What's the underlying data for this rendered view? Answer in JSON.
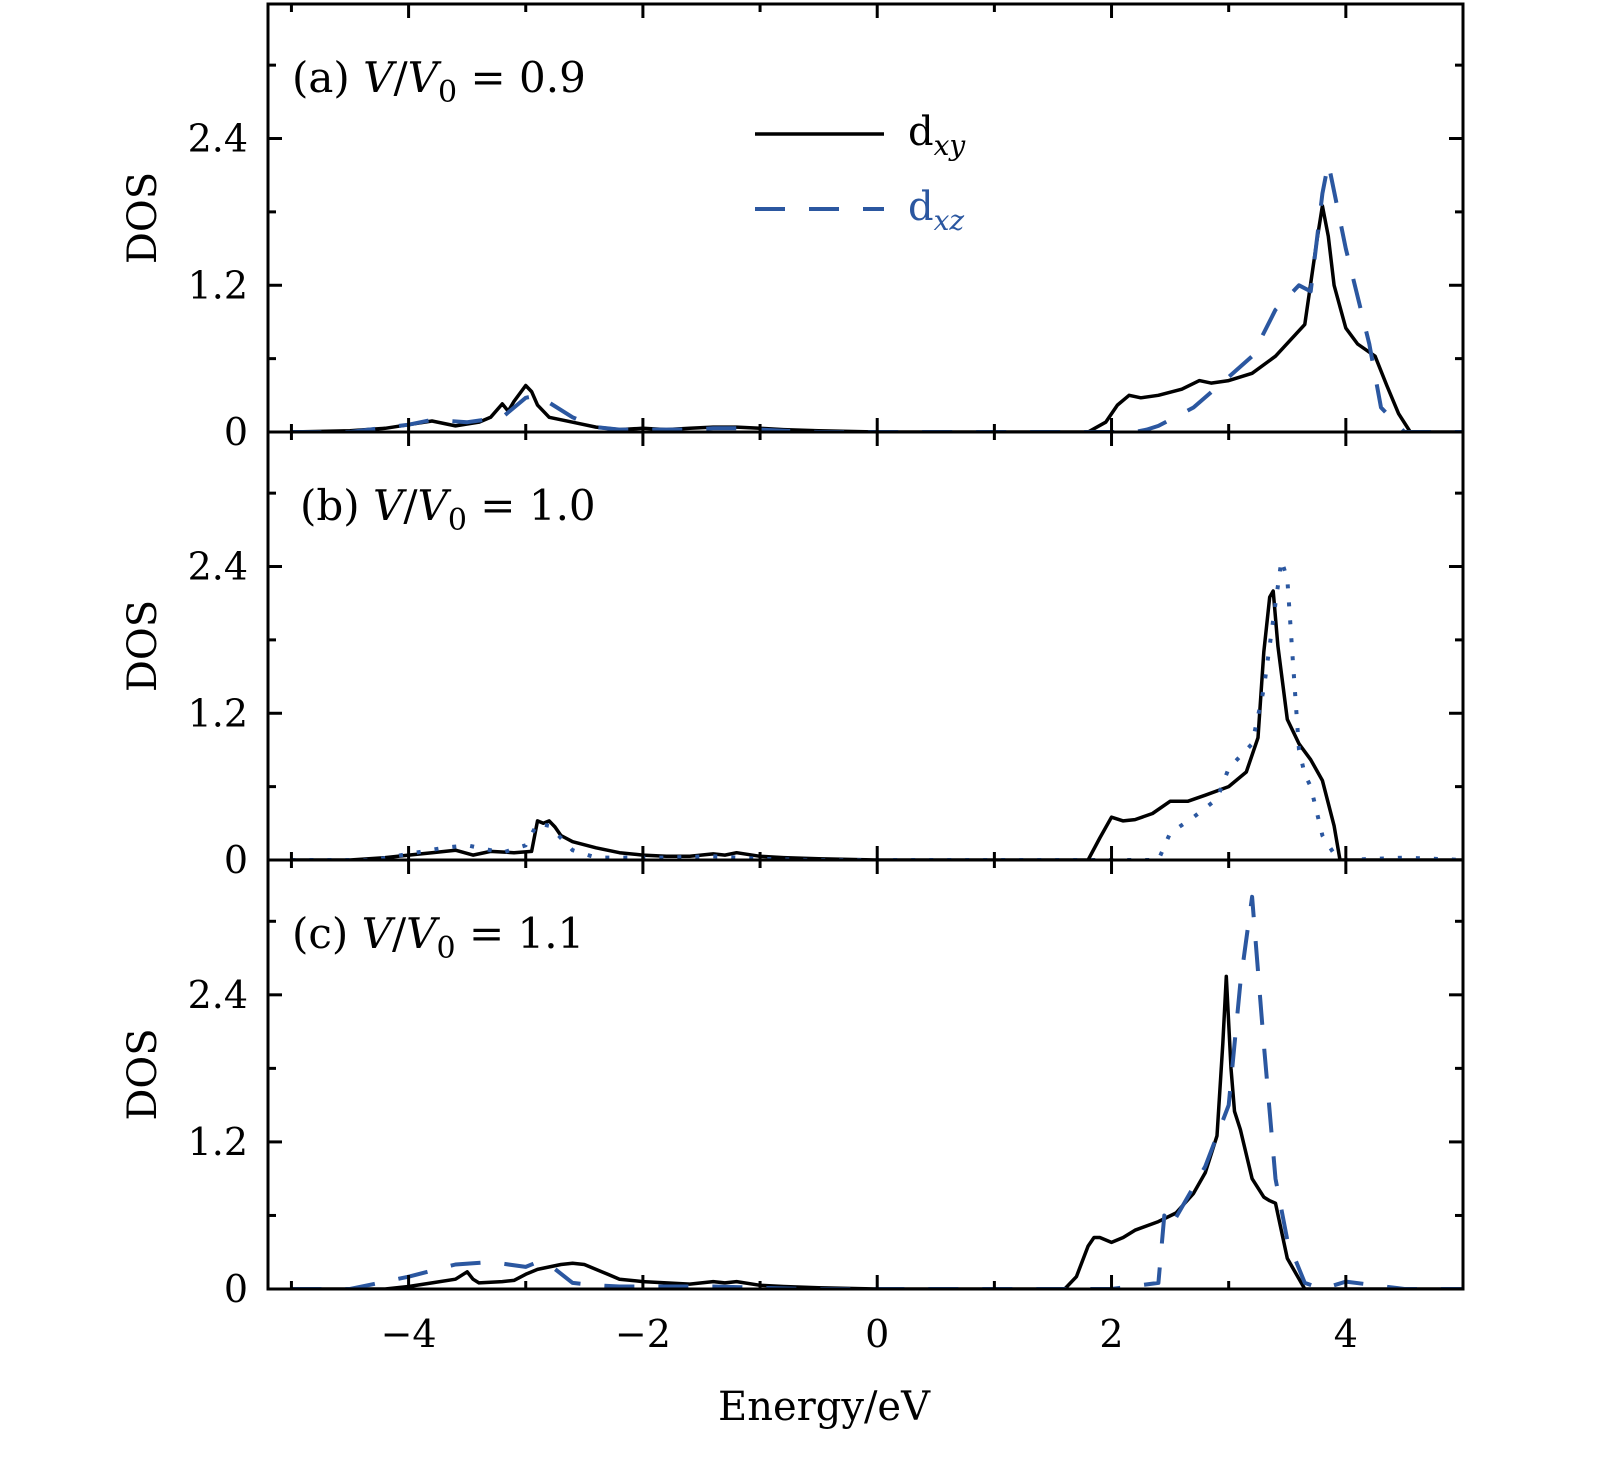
{
  "colors": {
    "dxy": "#000000",
    "dxz": "#2b57a0"
  },
  "chart_data": {
    "type": "line",
    "xlabel": "Energy/eV",
    "ylabel": "DOS",
    "xlim": [
      -5.2,
      5.0
    ],
    "ylim": [
      0,
      3.5
    ],
    "xticks": [
      -4,
      -2,
      0,
      2,
      4
    ],
    "xtick_labels": [
      "−4",
      "−2",
      "0",
      "2",
      "4"
    ],
    "yticks": [
      0,
      1.2,
      2.4
    ],
    "ytick_labels": [
      "0",
      "1.2",
      "2.4"
    ],
    "legend": {
      "placement": "upper-center",
      "entries": [
        "d_xy",
        "d_xz"
      ]
    },
    "panels": [
      {
        "label": "(a)",
        "ratio": "0.9",
        "series": [
          {
            "name": "d_xy",
            "style": "solid",
            "x": [
              -5.0,
              -4.5,
              -4.2,
              -4.0,
              -3.8,
              -3.6,
              -3.4,
              -3.3,
              -3.2,
              -3.15,
              -3.1,
              -3.0,
              -2.95,
              -2.9,
              -2.8,
              -2.6,
              -2.4,
              -2.2,
              -2.0,
              -1.8,
              -1.6,
              -1.4,
              -1.2,
              -1.0,
              -0.8,
              -0.5,
              0.0,
              1.0,
              1.8,
              1.95,
              2.05,
              2.15,
              2.25,
              2.4,
              2.6,
              2.75,
              2.85,
              3.0,
              3.2,
              3.4,
              3.65,
              3.75,
              3.8,
              3.85,
              3.9,
              4.0,
              4.1,
              4.25,
              4.35,
              4.45,
              4.55,
              5.0
            ],
            "y": [
              0,
              0.01,
              0.03,
              0.06,
              0.09,
              0.05,
              0.08,
              0.12,
              0.23,
              0.17,
              0.25,
              0.38,
              0.33,
              0.22,
              0.12,
              0.08,
              0.04,
              0.02,
              0.03,
              0.02,
              0.03,
              0.04,
              0.04,
              0.03,
              0.02,
              0.01,
              0,
              0,
              0,
              0.08,
              0.22,
              0.3,
              0.28,
              0.3,
              0.35,
              0.42,
              0.4,
              0.42,
              0.48,
              0.62,
              0.88,
              1.55,
              1.85,
              1.6,
              1.2,
              0.85,
              0.72,
              0.62,
              0.38,
              0.15,
              0,
              0
            ]
          },
          {
            "name": "d_xz",
            "style": "dashed",
            "x": [
              -5.0,
              -4.5,
              -4.0,
              -3.8,
              -3.5,
              -3.2,
              -3.0,
              -2.9,
              -2.6,
              -2.4,
              -2.2,
              -1.8,
              -1.6,
              -1.4,
              -1.2,
              -1.0,
              -0.8,
              -0.5,
              0.0,
              1.0,
              1.8,
              2.0,
              2.2,
              2.3,
              2.4,
              2.7,
              3.0,
              3.2,
              3.4,
              3.6,
              3.7,
              3.8,
              3.85,
              4.0,
              4.2,
              4.3,
              4.5,
              5.0
            ],
            "y": [
              0,
              0,
              0.06,
              0.1,
              0.08,
              0.12,
              0.28,
              0.3,
              0.12,
              0.04,
              0.02,
              0.02,
              0.02,
              0.03,
              0.03,
              0.02,
              0.01,
              0,
              0,
              0,
              0,
              0,
              0,
              0.02,
              0.05,
              0.2,
              0.45,
              0.62,
              1.0,
              1.2,
              1.15,
              1.95,
              2.2,
              1.5,
              0.72,
              0.2,
              0,
              0
            ]
          }
        ]
      },
      {
        "label": "(b)",
        "ratio": "1.0",
        "series": [
          {
            "name": "d_xy",
            "style": "solid",
            "x": [
              -5.0,
              -4.5,
              -4.2,
              -4.0,
              -3.8,
              -3.6,
              -3.45,
              -3.3,
              -3.1,
              -2.95,
              -2.9,
              -2.85,
              -2.8,
              -2.75,
              -2.7,
              -2.6,
              -2.4,
              -2.2,
              -2.0,
              -1.8,
              -1.6,
              -1.4,
              -1.3,
              -1.2,
              -1.0,
              -0.8,
              -0.5,
              0.0,
              1.0,
              1.8,
              1.9,
              2.0,
              2.1,
              2.2,
              2.35,
              2.5,
              2.65,
              2.8,
              3.0,
              3.15,
              3.25,
              3.3,
              3.35,
              3.38,
              3.42,
              3.5,
              3.6,
              3.7,
              3.8,
              3.9,
              3.95,
              5.0
            ],
            "y": [
              0,
              0,
              0.02,
              0.04,
              0.06,
              0.08,
              0.04,
              0.07,
              0.06,
              0.07,
              0.32,
              0.3,
              0.32,
              0.27,
              0.2,
              0.15,
              0.1,
              0.06,
              0.04,
              0.03,
              0.03,
              0.05,
              0.04,
              0.06,
              0.03,
              0.02,
              0.01,
              0,
              0,
              0,
              0.18,
              0.35,
              0.32,
              0.33,
              0.38,
              0.48,
              0.48,
              0.53,
              0.6,
              0.72,
              1.0,
              1.7,
              2.15,
              2.2,
              1.75,
              1.15,
              0.95,
              0.82,
              0.65,
              0.28,
              0,
              0
            ]
          },
          {
            "name": "d_xz",
            "style": "dotted",
            "x": [
              -5.0,
              -4.6,
              -4.3,
              -4.0,
              -3.7,
              -3.5,
              -3.2,
              -3.0,
              -2.9,
              -2.8,
              -2.6,
              -2.4,
              -2.2,
              -1.8,
              -1.4,
              -1.2,
              -1.0,
              -0.6,
              0.0,
              1.0,
              2.0,
              2.2,
              2.4,
              2.5,
              2.7,
              2.9,
              3.0,
              3.1,
              3.2,
              3.3,
              3.4,
              3.45,
              3.5,
              3.55,
              3.6,
              3.65,
              3.7,
              3.8,
              3.9,
              4.0,
              4.5,
              5.0
            ],
            "y": [
              0,
              0,
              0,
              0.05,
              0.1,
              0.12,
              0.06,
              0.12,
              0.3,
              0.28,
              0.08,
              0.02,
              0.02,
              0.02,
              0.03,
              0.02,
              0.01,
              0,
              0,
              0,
              0,
              0,
              0,
              0.22,
              0.35,
              0.5,
              0.75,
              0.85,
              0.95,
              1.4,
              2.1,
              2.45,
              2.3,
              1.6,
              0.9,
              0.7,
              0.6,
              0.2,
              0.05,
              0,
              0.02,
              0
            ]
          }
        ]
      },
      {
        "label": "(c)",
        "ratio": "1.1",
        "series": [
          {
            "name": "d_xy",
            "style": "solid",
            "x": [
              -5.0,
              -4.5,
              -4.2,
              -4.0,
              -3.8,
              -3.6,
              -3.5,
              -3.45,
              -3.4,
              -3.2,
              -3.1,
              -3.0,
              -2.9,
              -2.7,
              -2.6,
              -2.5,
              -2.3,
              -2.2,
              -2.0,
              -1.8,
              -1.6,
              -1.4,
              -1.3,
              -1.2,
              -1.0,
              -0.8,
              -0.5,
              0.0,
              1.0,
              1.6,
              1.7,
              1.8,
              1.85,
              1.9,
              2.0,
              2.1,
              2.2,
              2.4,
              2.55,
              2.7,
              2.8,
              2.9,
              2.95,
              2.98,
              3.02,
              3.05,
              3.1,
              3.2,
              3.3,
              3.35,
              3.4,
              3.5,
              3.65,
              5.0
            ],
            "y": [
              0,
              0,
              0,
              0.02,
              0.05,
              0.08,
              0.14,
              0.08,
              0.05,
              0.06,
              0.07,
              0.12,
              0.16,
              0.2,
              0.21,
              0.2,
              0.12,
              0.08,
              0.06,
              0.05,
              0.04,
              0.06,
              0.05,
              0.06,
              0.03,
              0.02,
              0.01,
              0,
              0,
              0,
              0.1,
              0.35,
              0.42,
              0.42,
              0.38,
              0.42,
              0.48,
              0.55,
              0.62,
              0.78,
              0.95,
              1.25,
              2.0,
              2.55,
              1.8,
              1.45,
              1.3,
              0.9,
              0.75,
              0.72,
              0.7,
              0.25,
              0,
              0
            ]
          },
          {
            "name": "d_xz",
            "style": "dashed",
            "x": [
              -5.0,
              -4.5,
              -4.0,
              -3.6,
              -3.3,
              -3.0,
              -2.9,
              -2.8,
              -2.6,
              -2.4,
              -2.2,
              -1.8,
              -1.4,
              -1.0,
              -0.6,
              0.0,
              1.0,
              2.0,
              2.4,
              2.45,
              2.5,
              2.8,
              3.0,
              3.1,
              3.2,
              3.3,
              3.4,
              3.5,
              3.65,
              3.8,
              4.0,
              4.5,
              5.0
            ],
            "y": [
              0,
              0,
              0.1,
              0.2,
              0.22,
              0.18,
              0.22,
              0.2,
              0.05,
              0.03,
              0.02,
              0.02,
              0.02,
              0.01,
              0,
              0,
              0,
              0,
              0.05,
              0.6,
              0.5,
              1.0,
              1.5,
              2.5,
              3.2,
              2.0,
              0.9,
              0.4,
              0.05,
              0,
              0.06,
              0,
              0
            ]
          }
        ]
      }
    ]
  }
}
